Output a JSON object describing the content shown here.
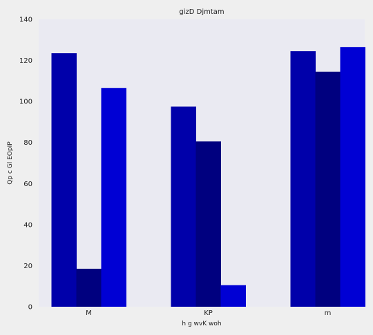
{
  "chart_data": {
    "type": "bar",
    "title": "gizD Djmtam",
    "xlabel": "h g wvK woh",
    "ylabel": "Qp c Gl EOpIP",
    "categories": [
      "M",
      "KP",
      "m"
    ],
    "series": [
      {
        "values": [
          123.5,
          97.5,
          124.5
        ],
        "color": "#0000aa"
      },
      {
        "values": [
          18.5,
          80.5,
          114.5
        ],
        "color": "#00007f"
      },
      {
        "values": [
          106.5,
          10.5,
          126.5
        ],
        "color": "#0000d4"
      }
    ],
    "ylim": [
      0,
      140
    ],
    "yticks": [
      0,
      20,
      40,
      60,
      80,
      100,
      120,
      140
    ],
    "grid": false,
    "plot_background": "#eaeaf2"
  }
}
